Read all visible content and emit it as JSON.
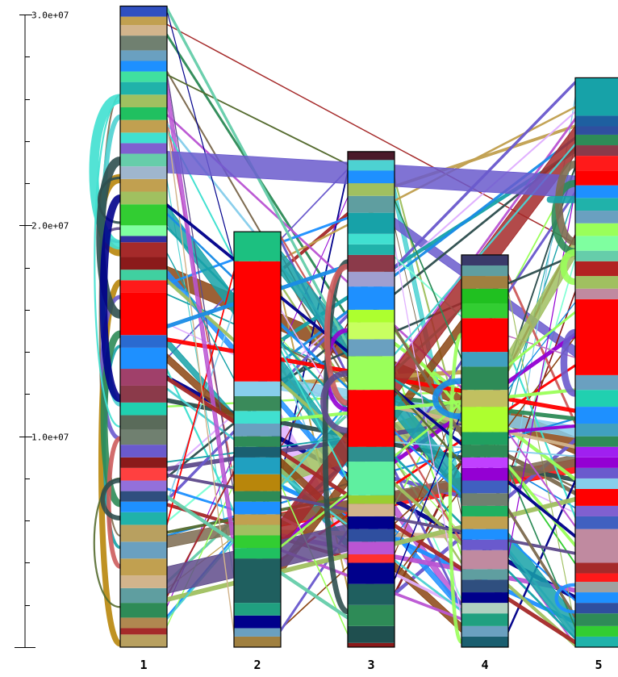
{
  "chart_data": {
    "type": "synteny-ribbon",
    "y_axis": {
      "min": 0,
      "max": 30000000,
      "major_ticks": [
        {
          "value": 10000000,
          "label": "1.0e+07"
        },
        {
          "value": 20000000,
          "label": "2.0e+07"
        },
        {
          "value": 30000000,
          "label": "3.0e+07"
        }
      ],
      "minor_step": 2000000
    },
    "chromosomes": [
      {
        "label": "1",
        "length": 30400000
      },
      {
        "label": "2",
        "length": 19700000
      },
      {
        "label": "3",
        "length": 23500000
      },
      {
        "label": "4",
        "length": 18600000
      },
      {
        "label": "5",
        "length": 27000000
      }
    ],
    "palette": [
      "#ff0000",
      "#1a8ce6",
      "#17a2a8",
      "#9aff5a",
      "#7d6b50",
      "#a52a2a",
      "#8b4513",
      "#2e8b57",
      "#e0b0ff",
      "#c1a050",
      "#4dd2d2",
      "#6a5acd",
      "#32cd32",
      "#8b1a1a",
      "#c071c0",
      "#2f4f4f",
      "#a0c060",
      "#00008b",
      "#40e0d0",
      "#b8860b",
      "#87ceeb",
      "#7fffd4",
      "#9400d3",
      "#cd5c5c",
      "#556b2f",
      "#d2b48c",
      "#1e90ff",
      "#ba55d3",
      "#66cdaa",
      "#5f4b8b"
    ],
    "segments": {
      "1": [
        [
          0,
          0.6,
          "#b8a060"
        ],
        [
          0.6,
          0.9,
          "#a52a2a"
        ],
        [
          0.9,
          1.4,
          "#b08850"
        ],
        [
          1.4,
          2.1,
          "#2e8b57"
        ],
        [
          2.1,
          2.8,
          "#5f9ea0"
        ],
        [
          2.8,
          3.4,
          "#d2b48c"
        ],
        [
          3.4,
          4.2,
          "#c1a050"
        ],
        [
          4.2,
          5.0,
          "#6aa0c0"
        ],
        [
          5.0,
          5.8,
          "#b8a060"
        ],
        [
          5.8,
          6.4,
          "#20b2aa"
        ],
        [
          6.4,
          6.9,
          "#1e90ff"
        ],
        [
          6.9,
          7.4,
          "#2f4f7f"
        ],
        [
          7.4,
          7.9,
          "#9370db"
        ],
        [
          7.9,
          8.5,
          "#ff4040"
        ],
        [
          8.5,
          9.0,
          "#8b1a1a"
        ],
        [
          9.0,
          9.6,
          "#6a5acd"
        ],
        [
          9.6,
          10.3,
          "#708070"
        ],
        [
          10.3,
          11.0,
          "#5a6b5a"
        ],
        [
          11.0,
          11.6,
          "#20d0b0"
        ],
        [
          11.6,
          12.4,
          "#8b3a4a"
        ],
        [
          12.4,
          13.2,
          "#a0406a"
        ],
        [
          13.2,
          14.2,
          "#1e90ff"
        ],
        [
          14.2,
          14.8,
          "#2a6ad0"
        ],
        [
          14.8,
          16.8,
          "#ff0000"
        ],
        [
          16.8,
          17.4,
          "#ff1a1a"
        ],
        [
          17.4,
          17.9,
          "#40d0a0"
        ],
        [
          17.9,
          18.5,
          "#8b1a1a"
        ],
        [
          18.5,
          19.2,
          "#a52a2a"
        ],
        [
          19.2,
          19.5,
          "#3030a0"
        ],
        [
          19.5,
          20.0,
          "#7fffa0"
        ],
        [
          20.0,
          21.0,
          "#32cd32"
        ],
        [
          21.0,
          21.6,
          "#a0c060"
        ],
        [
          21.6,
          22.2,
          "#c1a050"
        ],
        [
          22.2,
          22.8,
          "#9fb6cd"
        ],
        [
          22.8,
          23.4,
          "#66cdaa"
        ],
        [
          23.4,
          23.9,
          "#8060d0"
        ],
        [
          23.9,
          24.4,
          "#40e0d0"
        ],
        [
          24.4,
          25.0,
          "#c1a050"
        ],
        [
          25.0,
          25.6,
          "#20c060"
        ],
        [
          25.6,
          26.2,
          "#a0c060"
        ],
        [
          26.2,
          26.8,
          "#20b2aa"
        ],
        [
          26.8,
          27.3,
          "#40e0a0"
        ],
        [
          27.3,
          27.8,
          "#1e90ff"
        ],
        [
          27.8,
          28.3,
          "#6aa0c0"
        ],
        [
          28.3,
          29.0,
          "#708070"
        ],
        [
          29.0,
          29.5,
          "#d2b48c"
        ],
        [
          29.5,
          29.9,
          "#c1a050"
        ],
        [
          29.9,
          30.4,
          "#3050c0"
        ]
      ],
      "2": [
        [
          0,
          0.5,
          "#a08040"
        ],
        [
          0.5,
          0.9,
          "#6aa0c0"
        ],
        [
          0.9,
          1.5,
          "#00008b"
        ],
        [
          1.5,
          2.1,
          "#20a080"
        ],
        [
          2.1,
          4.2,
          "#1f5f5f"
        ],
        [
          4.2,
          4.7,
          "#20c060"
        ],
        [
          4.7,
          5.3,
          "#32cd32"
        ],
        [
          5.3,
          5.8,
          "#a0c060"
        ],
        [
          5.8,
          6.3,
          "#c1a050"
        ],
        [
          6.3,
          6.9,
          "#1e90ff"
        ],
        [
          6.9,
          7.4,
          "#2e8b57"
        ],
        [
          7.4,
          8.2,
          "#b8860b"
        ],
        [
          8.2,
          9.0,
          "#20a0c0"
        ],
        [
          9.0,
          9.5,
          "#1a5f70"
        ],
        [
          9.5,
          10.0,
          "#2e8b57"
        ],
        [
          10.0,
          10.6,
          "#6aa0c0"
        ],
        [
          10.6,
          11.2,
          "#40e0d0"
        ],
        [
          11.2,
          11.9,
          "#3a8a5a"
        ],
        [
          11.9,
          12.6,
          "#87ceeb"
        ],
        [
          12.6,
          18.3,
          "#ff0000"
        ],
        [
          18.3,
          19.7,
          "#1cc080"
        ]
      ],
      "3": [
        [
          0,
          0.2,
          "#8b1a1a"
        ],
        [
          0.2,
          1.0,
          "#1f4f4f"
        ],
        [
          1.0,
          2.0,
          "#2e8b57"
        ],
        [
          2.0,
          3.0,
          "#1f5f5f"
        ],
        [
          3.0,
          4.0,
          "#00008b"
        ],
        [
          4.0,
          4.4,
          "#ff3030"
        ],
        [
          4.4,
          5.0,
          "#ba55d3"
        ],
        [
          5.0,
          5.6,
          "#2f4f9f"
        ],
        [
          5.6,
          6.2,
          "#00008b"
        ],
        [
          6.2,
          6.8,
          "#d2b48c"
        ],
        [
          6.8,
          7.2,
          "#9acd32"
        ],
        [
          7.2,
          8.8,
          "#5fefa0"
        ],
        [
          8.8,
          9.5,
          "#2f8f8f"
        ],
        [
          9.5,
          12.2,
          "#ff0000"
        ],
        [
          12.2,
          13.8,
          "#9aff5a"
        ],
        [
          13.8,
          14.6,
          "#6aa0c0"
        ],
        [
          14.6,
          15.4,
          "#c8ff60"
        ],
        [
          15.4,
          16.0,
          "#adff2f"
        ],
        [
          16.0,
          17.1,
          "#1e90ff"
        ],
        [
          17.1,
          17.8,
          "#9f9fd0"
        ],
        [
          17.8,
          18.6,
          "#8b3a4a"
        ],
        [
          18.6,
          19.1,
          "#20b2aa"
        ],
        [
          19.1,
          19.6,
          "#40e0d0"
        ],
        [
          19.6,
          20.6,
          "#17a2a8"
        ],
        [
          20.6,
          21.4,
          "#5f9ea0"
        ],
        [
          21.4,
          22.0,
          "#a0c060"
        ],
        [
          22.0,
          22.6,
          "#1e90ff"
        ],
        [
          22.6,
          23.1,
          "#4dd2d2"
        ],
        [
          23.1,
          23.5,
          "#4a1a2a"
        ]
      ],
      "4": [
        [
          0,
          0.5,
          "#1a5f70"
        ],
        [
          0.5,
          1.0,
          "#6aa0c0"
        ],
        [
          1.0,
          1.6,
          "#20a080"
        ],
        [
          1.6,
          2.1,
          "#b0d0c0"
        ],
        [
          2.1,
          2.6,
          "#00008b"
        ],
        [
          2.6,
          3.2,
          "#2f4f7f"
        ],
        [
          3.2,
          3.7,
          "#5f9ea0"
        ],
        [
          3.7,
          4.6,
          "#c08aa0"
        ],
        [
          4.6,
          5.1,
          "#6a5acd"
        ],
        [
          5.1,
          5.6,
          "#1e90ff"
        ],
        [
          5.6,
          6.2,
          "#c1a050"
        ],
        [
          6.2,
          6.7,
          "#20b060"
        ],
        [
          6.7,
          7.3,
          "#708070"
        ],
        [
          7.3,
          7.9,
          "#4060c0"
        ],
        [
          7.9,
          8.5,
          "#9400d3"
        ],
        [
          8.5,
          9.0,
          "#c040ff"
        ],
        [
          9.0,
          9.6,
          "#2e8b57"
        ],
        [
          9.6,
          10.2,
          "#20a060"
        ],
        [
          10.2,
          11.4,
          "#adff2f"
        ],
        [
          11.4,
          12.2,
          "#c1c060"
        ],
        [
          12.2,
          13.3,
          "#2e8b57"
        ],
        [
          13.3,
          14.0,
          "#40a0c0"
        ],
        [
          14.0,
          15.6,
          "#ff0000"
        ],
        [
          15.6,
          16.3,
          "#32cd32"
        ],
        [
          16.3,
          17.0,
          "#20c020"
        ],
        [
          17.0,
          17.6,
          "#a08040"
        ],
        [
          17.6,
          18.1,
          "#5f9ea0"
        ],
        [
          18.1,
          18.6,
          "#3a3a6a"
        ]
      ],
      "5": [
        [
          0,
          0.5,
          "#20b2aa"
        ],
        [
          0.5,
          1.0,
          "#32cd32"
        ],
        [
          1.0,
          1.6,
          "#2e8b57"
        ],
        [
          1.6,
          2.1,
          "#2f4f9f"
        ],
        [
          2.1,
          2.6,
          "#1e90ff"
        ],
        [
          2.6,
          3.1,
          "#a0a0a0"
        ],
        [
          3.1,
          3.5,
          "#ff1a1a"
        ],
        [
          3.5,
          4.0,
          "#a52a2a"
        ],
        [
          4.0,
          5.6,
          "#c08aa0"
        ],
        [
          5.6,
          6.2,
          "#4060c0"
        ],
        [
          6.2,
          6.7,
          "#8060d0"
        ],
        [
          6.7,
          7.5,
          "#ff0000"
        ],
        [
          7.5,
          8.0,
          "#87ceeb"
        ],
        [
          8.0,
          8.5,
          "#6a5acd"
        ],
        [
          8.5,
          9.0,
          "#9400d3"
        ],
        [
          9.0,
          9.5,
          "#a020f0"
        ],
        [
          9.5,
          10.0,
          "#2e8b57"
        ],
        [
          10.0,
          10.6,
          "#40a0c0"
        ],
        [
          10.6,
          11.4,
          "#1e90ff"
        ],
        [
          11.4,
          12.2,
          "#20d0b0"
        ],
        [
          12.2,
          12.9,
          "#6aa0c0"
        ],
        [
          12.9,
          16.5,
          "#ff0000"
        ],
        [
          16.5,
          17.0,
          "#c08aa0"
        ],
        [
          17.0,
          17.6,
          "#a0c060"
        ],
        [
          17.6,
          18.3,
          "#b22222"
        ],
        [
          18.3,
          18.8,
          "#66cdaa"
        ],
        [
          18.8,
          19.5,
          "#7fffa0"
        ],
        [
          19.5,
          20.1,
          "#9aff5a"
        ],
        [
          20.1,
          20.7,
          "#6aa0c0"
        ],
        [
          20.7,
          21.3,
          "#20b2aa"
        ],
        [
          21.3,
          21.9,
          "#1e90ff"
        ],
        [
          21.9,
          22.6,
          "#ff0000"
        ],
        [
          22.6,
          23.3,
          "#ff1a1a"
        ],
        [
          23.3,
          23.8,
          "#8b3a4a"
        ],
        [
          23.8,
          24.3,
          "#2e8b57"
        ],
        [
          24.3,
          24.7,
          "#2f4f9f"
        ],
        [
          24.7,
          25.2,
          "#1e5fa0"
        ],
        [
          25.2,
          27.0,
          "#17a2a8"
        ]
      ]
    }
  }
}
